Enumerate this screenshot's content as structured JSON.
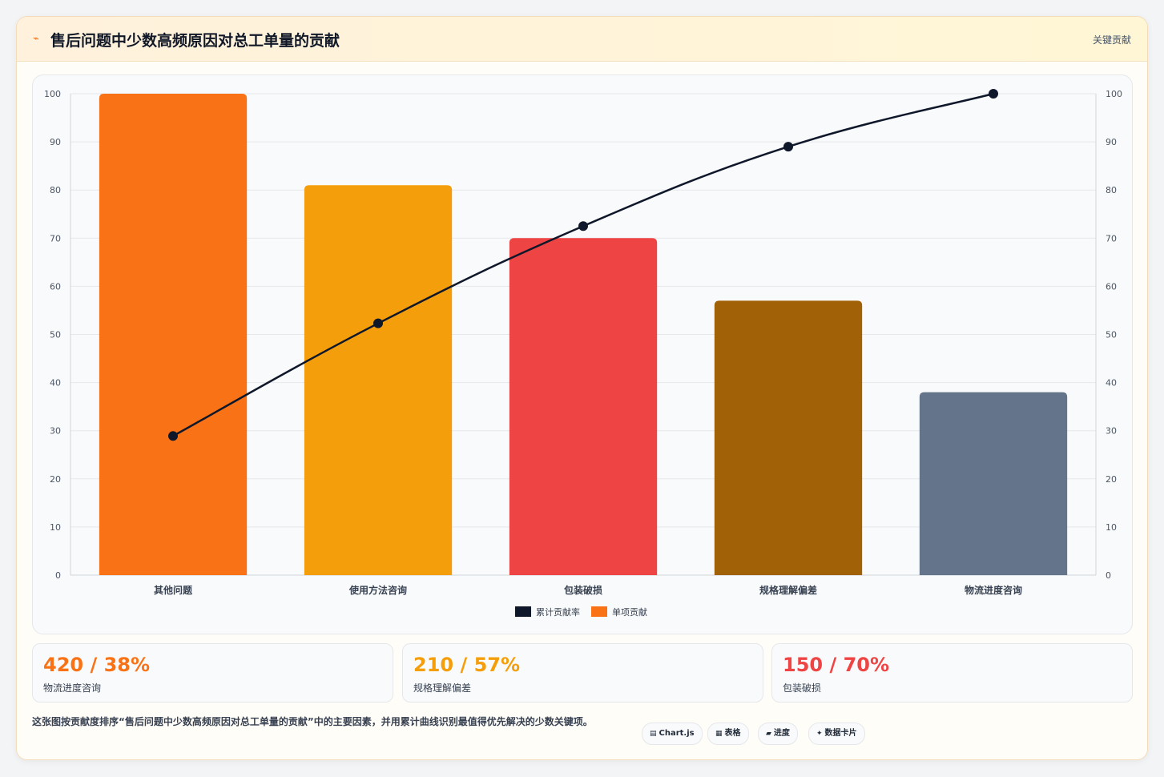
{
  "header": {
    "icon": "lightning-icon",
    "title": "售后问题中少数高频原因对总工单量的贡献",
    "tag": "关键贡献"
  },
  "chart_data": {
    "type": "bar",
    "categories": [
      "其他问题",
      "使用方法咨询",
      "包装破损",
      "规格理解偏差",
      "物流进度咨询"
    ],
    "series": [
      {
        "name": "单项贡献",
        "type": "bar",
        "values": [
          100,
          81,
          70,
          57,
          38
        ]
      },
      {
        "name": "累计贡献率",
        "type": "line",
        "values": [
          28.9,
          52.3,
          72.5,
          89.0,
          100
        ]
      }
    ],
    "y_left": {
      "min": 0,
      "max": 100,
      "ticks": [
        0,
        10,
        20,
        30,
        40,
        50,
        60,
        70,
        80,
        90,
        100
      ]
    },
    "y_right": {
      "min": 0,
      "max": 100,
      "ticks": [
        0,
        10,
        20,
        30,
        40,
        50,
        60,
        70,
        80,
        90,
        100
      ]
    },
    "bar_colors": [
      "#f97316",
      "#f59e0b",
      "#ef4444",
      "#a16207",
      "#64748b"
    ],
    "line_color": "#0f172a",
    "legend": [
      {
        "label": "累计贡献率",
        "color": "#0f172a"
      },
      {
        "label": "单项贡献",
        "color": "#f97316"
      }
    ],
    "legend_position": "bottom",
    "grid": true
  },
  "stats": [
    {
      "value": "420 / 38%",
      "label": "物流进度咨询",
      "color": "#f97316"
    },
    {
      "value": "210 / 57%",
      "label": "规格理解偏差",
      "color": "#f59e0b"
    },
    {
      "value": "150 / 70%",
      "label": "包装破损",
      "color": "#ef4444"
    }
  ],
  "footer": {
    "description": "这张图按贡献度排序“售后问题中少数高频原因对总工单量的贡献”中的主要因素，并用累计曲线识别最值得优先解决的少数关键项。",
    "pills": [
      {
        "icon": "▤",
        "label": "Chart.js"
      },
      {
        "icon": "▦",
        "label": "表格"
      },
      {
        "icon": "▰",
        "label": "进度"
      },
      {
        "icon": "✦",
        "label": "数据卡片"
      }
    ]
  }
}
